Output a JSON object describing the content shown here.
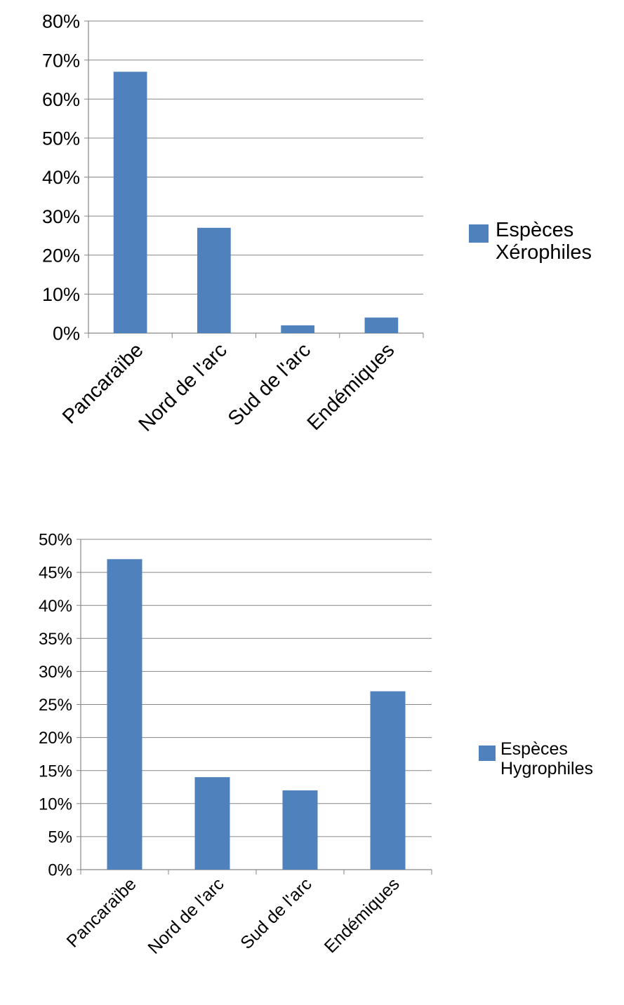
{
  "chart_data": [
    {
      "type": "bar",
      "categories": [
        "Pancaraïbe",
        "Nord de l'arc",
        "Sud de l'arc",
        "Endémiques"
      ],
      "series": [
        {
          "name": "Espèces Xérophiles",
          "values": [
            67,
            27,
            2,
            4
          ]
        }
      ],
      "value_unit": "%",
      "ylim": [
        0,
        80
      ],
      "yticks": [
        "0%",
        "10%",
        "20%",
        "30%",
        "40%",
        "50%",
        "60%",
        "70%",
        "80%"
      ],
      "grid": true,
      "legend_position": "right",
      "legend": {
        "line1": "Espèces",
        "line2": "Xérophiles"
      },
      "bar_color": "#4f81bd"
    },
    {
      "type": "bar",
      "categories": [
        "Pancaraïbe",
        "Nord de l'arc",
        "Sud de l'arc",
        "Endémiques"
      ],
      "series": [
        {
          "name": "Espèces Hygrophiles",
          "values": [
            47,
            14,
            12,
            27
          ]
        }
      ],
      "value_unit": "%",
      "ylim": [
        0,
        50
      ],
      "yticks": [
        "0%",
        "5%",
        "10%",
        "15%",
        "20%",
        "25%",
        "30%",
        "35%",
        "40%",
        "45%",
        "50%"
      ],
      "grid": true,
      "legend_position": "right",
      "legend": {
        "line1": "Espèces",
        "line2": "Hygrophiles"
      },
      "bar_color": "#4f81bd"
    }
  ]
}
